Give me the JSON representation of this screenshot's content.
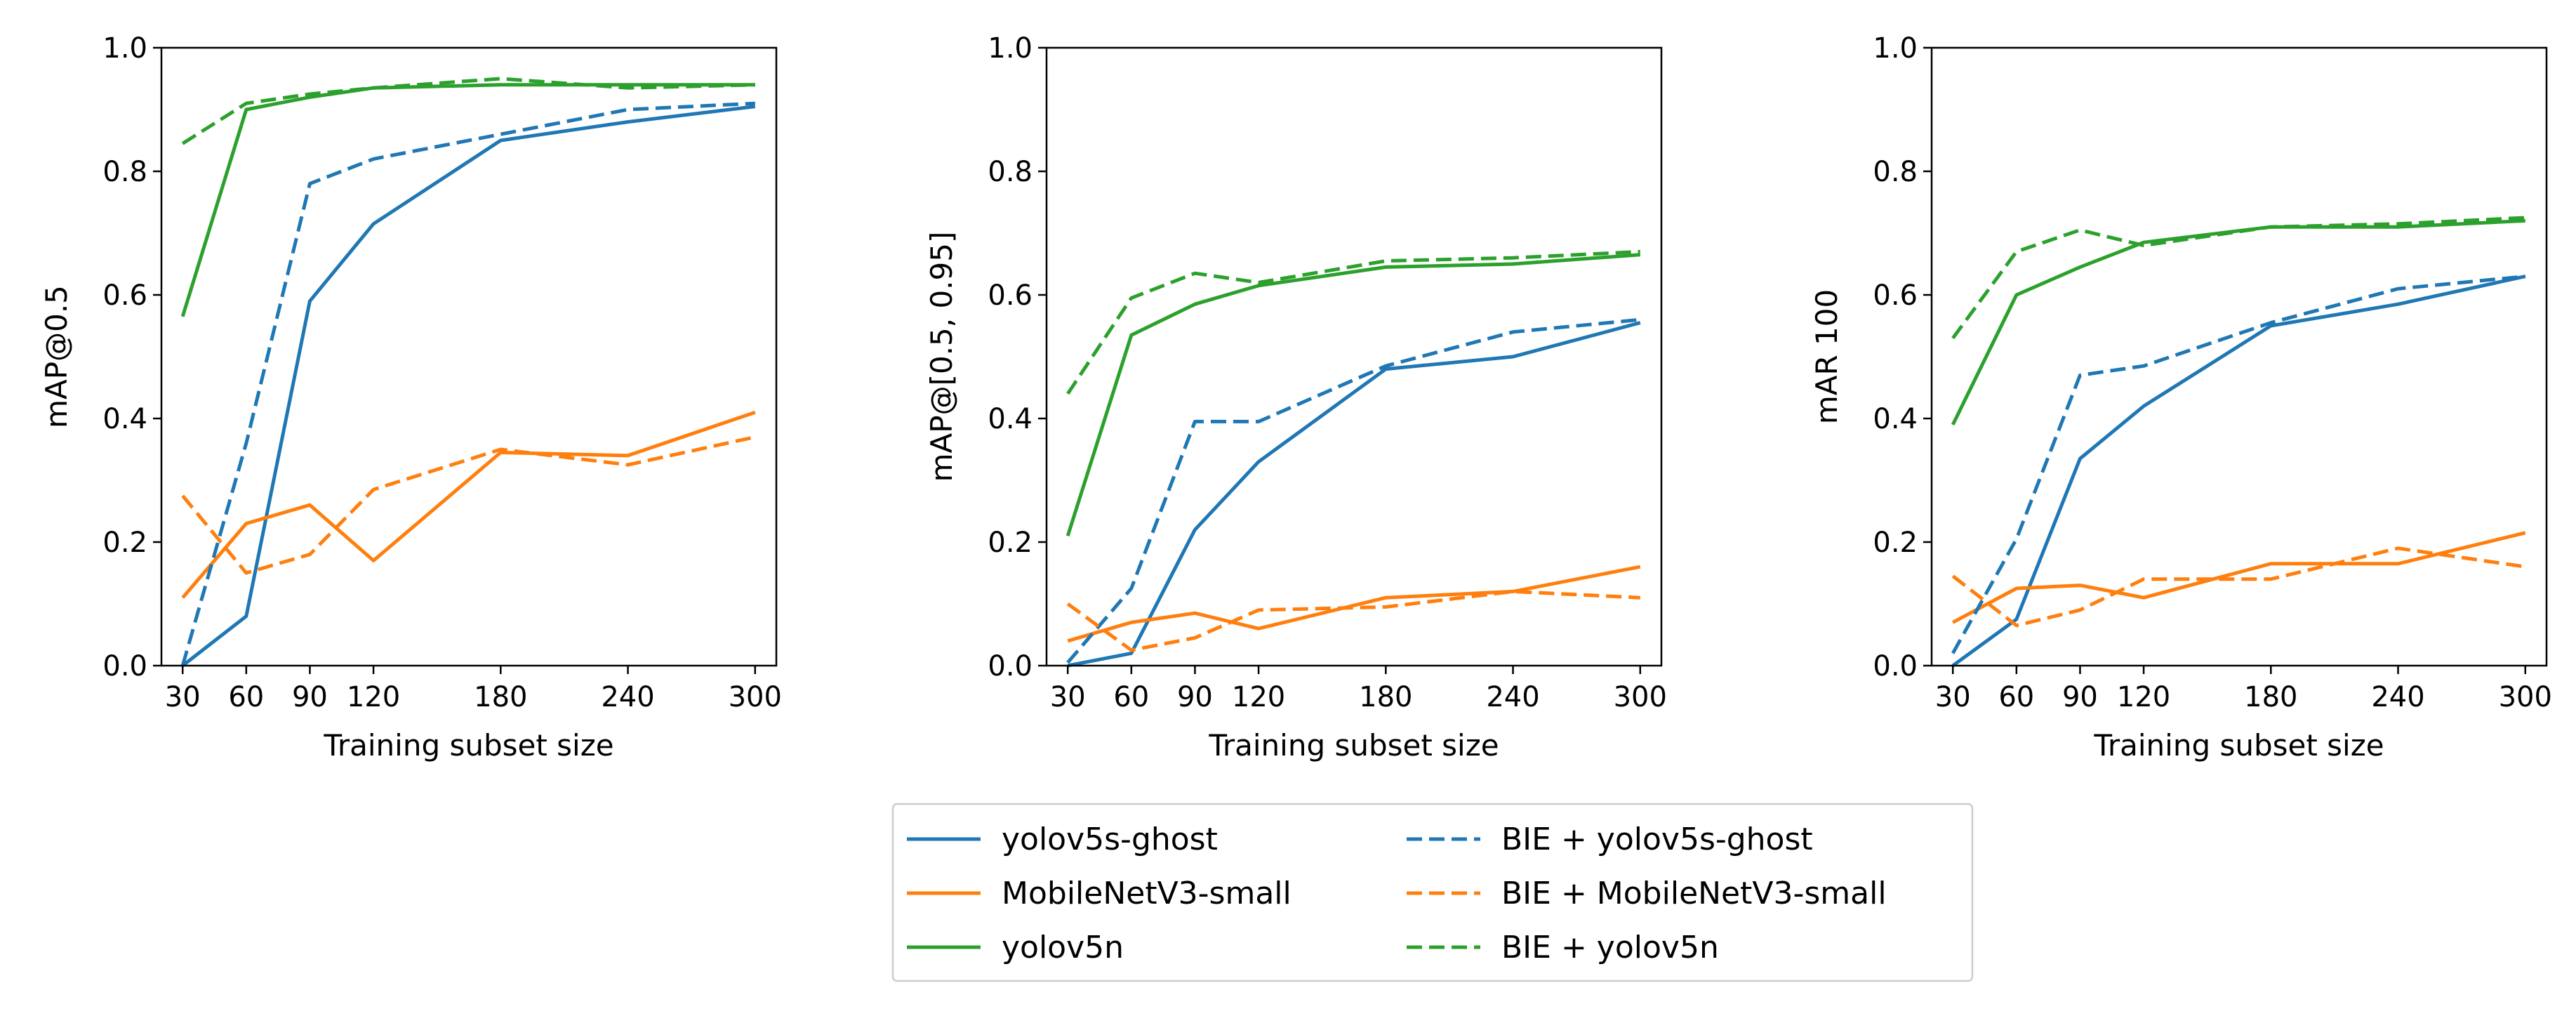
{
  "chart_data": [
    {
      "type": "line",
      "title": "",
      "xlabel": "Training subset size",
      "ylabel": "mAP@0.5",
      "x": [
        30,
        60,
        90,
        120,
        180,
        240,
        300
      ],
      "xticks": [
        30,
        60,
        90,
        120,
        180,
        240,
        300
      ],
      "xlim": [
        20,
        310
      ],
      "ylim": [
        0,
        1
      ],
      "yticks": [
        "0.0",
        "0.2",
        "0.4",
        "0.6",
        "0.8",
        "1.0"
      ],
      "series": [
        {
          "name": "yolov5s-ghost",
          "color": "#1f77b4",
          "style": "solid",
          "values": [
            0.0,
            0.08,
            0.59,
            0.715,
            0.85,
            0.88,
            0.905
          ]
        },
        {
          "name": "MobileNetV3-small",
          "color": "#ff7f0e",
          "style": "solid",
          "values": [
            0.11,
            0.23,
            0.26,
            0.17,
            0.345,
            0.34,
            0.41
          ]
        },
        {
          "name": "yolov5n",
          "color": "#2ca02c",
          "style": "solid",
          "values": [
            0.565,
            0.9,
            0.92,
            0.935,
            0.94,
            0.94,
            0.94
          ]
        },
        {
          "name": "BIE + yolov5s-ghost",
          "color": "#1f77b4",
          "style": "dashed",
          "values": [
            0.0,
            0.36,
            0.78,
            0.82,
            0.86,
            0.9,
            0.91
          ]
        },
        {
          "name": "BIE + MobileNetV3-small",
          "color": "#ff7f0e",
          "style": "dashed",
          "values": [
            0.275,
            0.15,
            0.18,
            0.285,
            0.35,
            0.325,
            0.37
          ]
        },
        {
          "name": "BIE + yolov5n",
          "color": "#2ca02c",
          "style": "dashed",
          "values": [
            0.845,
            0.91,
            0.925,
            0.935,
            0.95,
            0.935,
            0.94
          ]
        }
      ]
    },
    {
      "type": "line",
      "title": "",
      "xlabel": "Training subset size",
      "ylabel": "mAP@[0.5, 0.95]",
      "x": [
        30,
        60,
        90,
        120,
        180,
        240,
        300
      ],
      "xticks": [
        30,
        60,
        90,
        120,
        180,
        240,
        300
      ],
      "xlim": [
        20,
        310
      ],
      "ylim": [
        0,
        1
      ],
      "yticks": [
        "0.0",
        "0.2",
        "0.4",
        "0.6",
        "0.8",
        "1.0"
      ],
      "series": [
        {
          "name": "yolov5s-ghost",
          "color": "#1f77b4",
          "style": "solid",
          "values": [
            0.0,
            0.02,
            0.22,
            0.33,
            0.48,
            0.5,
            0.555
          ]
        },
        {
          "name": "MobileNetV3-small",
          "color": "#ff7f0e",
          "style": "solid",
          "values": [
            0.04,
            0.07,
            0.085,
            0.06,
            0.11,
            0.12,
            0.16
          ]
        },
        {
          "name": "yolov5n",
          "color": "#2ca02c",
          "style": "solid",
          "values": [
            0.21,
            0.535,
            0.585,
            0.615,
            0.645,
            0.65,
            0.665
          ]
        },
        {
          "name": "BIE + yolov5s-ghost",
          "color": "#1f77b4",
          "style": "dashed",
          "values": [
            0.005,
            0.125,
            0.395,
            0.395,
            0.485,
            0.54,
            0.56
          ]
        },
        {
          "name": "BIE + MobileNetV3-small",
          "color": "#ff7f0e",
          "style": "dashed",
          "values": [
            0.1,
            0.025,
            0.045,
            0.09,
            0.095,
            0.12,
            0.11
          ]
        },
        {
          "name": "BIE + yolov5n",
          "color": "#2ca02c",
          "style": "dashed",
          "values": [
            0.44,
            0.595,
            0.635,
            0.62,
            0.655,
            0.66,
            0.67
          ]
        }
      ]
    },
    {
      "type": "line",
      "title": "",
      "xlabel": "Training subset size",
      "ylabel": "mAR 100",
      "x": [
        30,
        60,
        90,
        120,
        180,
        240,
        300
      ],
      "xticks": [
        30,
        60,
        90,
        120,
        180,
        240,
        300
      ],
      "xlim": [
        20,
        310
      ],
      "ylim": [
        0,
        1
      ],
      "yticks": [
        "0.0",
        "0.2",
        "0.4",
        "0.6",
        "0.8",
        "1.0"
      ],
      "series": [
        {
          "name": "yolov5s-ghost",
          "color": "#1f77b4",
          "style": "solid",
          "values": [
            0.0,
            0.075,
            0.335,
            0.42,
            0.55,
            0.585,
            0.63
          ]
        },
        {
          "name": "MobileNetV3-small",
          "color": "#ff7f0e",
          "style": "solid",
          "values": [
            0.07,
            0.125,
            0.13,
            0.11,
            0.165,
            0.165,
            0.215
          ]
        },
        {
          "name": "yolov5n",
          "color": "#2ca02c",
          "style": "solid",
          "values": [
            0.39,
            0.6,
            0.645,
            0.685,
            0.71,
            0.71,
            0.72
          ]
        },
        {
          "name": "BIE + yolov5s-ghost",
          "color": "#1f77b4",
          "style": "dashed",
          "values": [
            0.02,
            0.205,
            0.47,
            0.485,
            0.555,
            0.61,
            0.63
          ]
        },
        {
          "name": "BIE + MobileNetV3-small",
          "color": "#ff7f0e",
          "style": "dashed",
          "values": [
            0.145,
            0.065,
            0.09,
            0.14,
            0.14,
            0.19,
            0.16
          ]
        },
        {
          "name": "BIE + yolov5n",
          "color": "#2ca02c",
          "style": "dashed",
          "values": [
            0.53,
            0.67,
            0.705,
            0.68,
            0.71,
            0.715,
            0.725
          ]
        }
      ]
    }
  ],
  "legend": {
    "placement": "bottom-center",
    "entries": [
      {
        "label": "yolov5s-ghost",
        "color": "#1f77b4",
        "style": "solid"
      },
      {
        "label": "MobileNetV3-small",
        "color": "#ff7f0e",
        "style": "solid"
      },
      {
        "label": "yolov5n",
        "color": "#2ca02c",
        "style": "solid"
      },
      {
        "label": "BIE + yolov5s-ghost",
        "color": "#1f77b4",
        "style": "dashed"
      },
      {
        "label": "BIE + MobileNetV3-small",
        "color": "#ff7f0e",
        "style": "dashed"
      },
      {
        "label": "BIE + yolov5n",
        "color": "#2ca02c",
        "style": "dashed"
      }
    ]
  }
}
